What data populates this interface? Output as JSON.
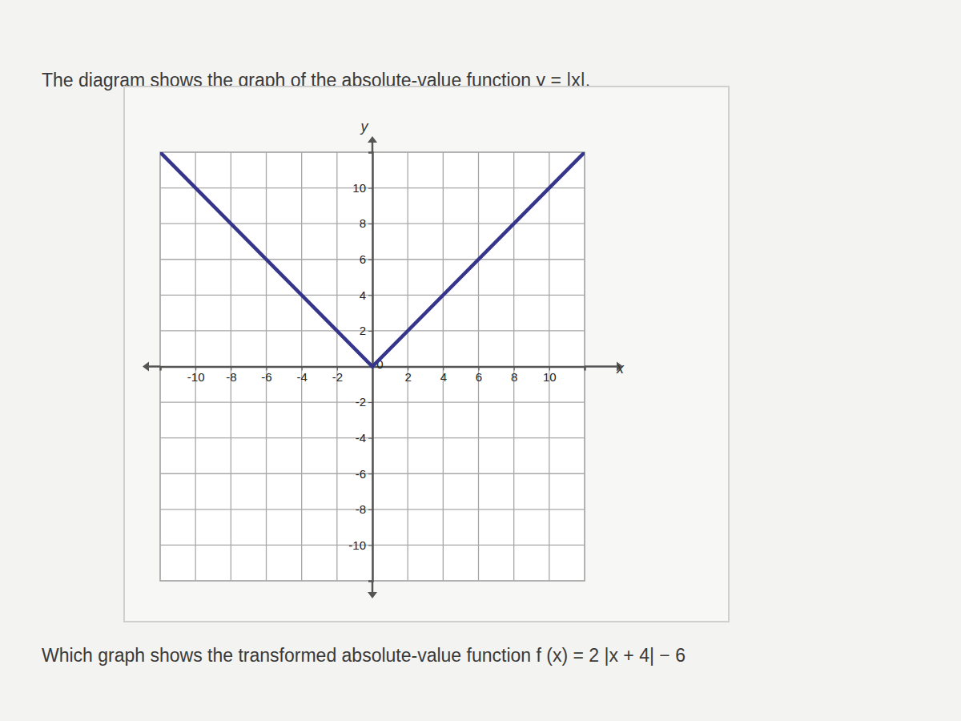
{
  "chart_data": {
    "type": "line",
    "title": "The diagram shows the graph of the absolute-value function y = |x|.",
    "annotations": [
      "Which graph shows the transformed absolute-value function f (x) = 2 |x + 4| − 6"
    ],
    "x_label": "x",
    "y_label": "y",
    "x": [
      -12,
      0,
      12
    ],
    "series": [
      {
        "values": [
          12,
          0,
          12
        ],
        "color": "#35358c",
        "line_style": "solid"
      }
    ],
    "xlim": [
      -12,
      12
    ],
    "ylim": [
      -12,
      12
    ],
    "xticks": [
      -10,
      -8,
      -6,
      -4,
      -2,
      0,
      2,
      4,
      6,
      8,
      10
    ],
    "yticks": [
      -10,
      -8,
      -6,
      -4,
      -2,
      2,
      4,
      6,
      8,
      10
    ],
    "grid": true
  }
}
